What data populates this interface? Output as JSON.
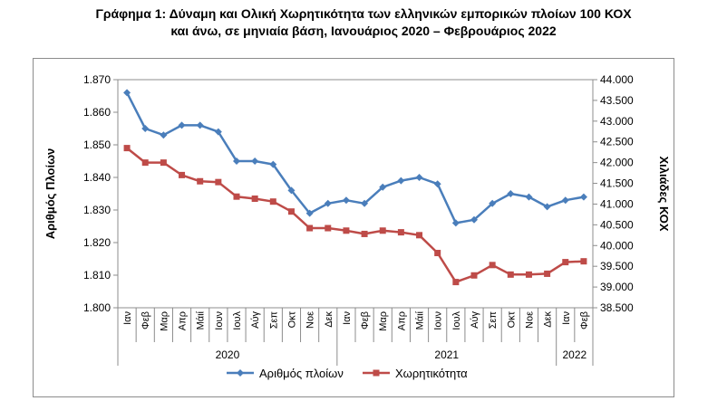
{
  "title_line1": "Γράφημα 1: Δύναμη και Ολική Χωρητικότητα των ελληνικών εμπορικών πλοίων 100 ΚΟΧ",
  "title_line2": "και άνω, σε μηνιαία βάση, Ιανουάριος 2020 – Φεβρουάριος 2022",
  "chart_data": {
    "type": "line",
    "categories": [
      "Ιαν",
      "Φεβ",
      "Μαρ",
      "Απρ",
      "Μάιί",
      "Ιουν",
      "Ιουλ",
      "Αύγ",
      "Σεπ",
      "Οκτ",
      "Νοε",
      "Δεκ",
      "Ιαν",
      "Φεβ",
      "Μαρ",
      "Απρ",
      "Μάιί",
      "Ιουν",
      "Ιουλ",
      "Αύγ",
      "Σεπ",
      "Οκτ",
      "Νοε",
      "Δεκ",
      "Ιαν",
      "Φεβ"
    ],
    "year_groups": [
      {
        "label": "2020",
        "start": 0,
        "end": 11
      },
      {
        "label": "2021",
        "start": 12,
        "end": 23
      },
      {
        "label": "2022",
        "start": 24,
        "end": 25
      }
    ],
    "ylabel": "Αριθμός Πλοίων",
    "ylabel_right": "Χιλιάδες ΚΟΧ",
    "ylim": [
      1800,
      1870
    ],
    "ylim_right": [
      38500,
      44000
    ],
    "yticks": [
      "1.800",
      "1.810",
      "1.820",
      "1.830",
      "1.840",
      "1.850",
      "1.860",
      "1.870"
    ],
    "yticks_right": [
      "38.500",
      "39.000",
      "39.500",
      "40.000",
      "40.500",
      "41.000",
      "41.500",
      "42.000",
      "42.500",
      "43.000",
      "43.500",
      "44.000"
    ],
    "legend_position": "bottom",
    "series": [
      {
        "name": "Αριθμός πλοίων",
        "axis": "left",
        "color": "#4a7ebb",
        "marker": "diamond",
        "values": [
          1866,
          1855,
          1853,
          1856,
          1856,
          1854,
          1845,
          1845,
          1844,
          1836,
          1829,
          1832,
          1833,
          1832,
          1837,
          1839,
          1840,
          1838,
          1826,
          1827,
          1832,
          1835,
          1834,
          1831,
          1833,
          1834
        ]
      },
      {
        "name": "Χωρητικότητα",
        "axis": "right",
        "color": "#be4b48",
        "marker": "square",
        "values": [
          42350,
          42000,
          42000,
          41700,
          41550,
          41530,
          41180,
          41130,
          41060,
          40820,
          40420,
          40420,
          40360,
          40280,
          40360,
          40320,
          40250,
          39820,
          39120,
          39280,
          39530,
          39300,
          39300,
          39320,
          39600,
          39620
        ]
      }
    ]
  }
}
